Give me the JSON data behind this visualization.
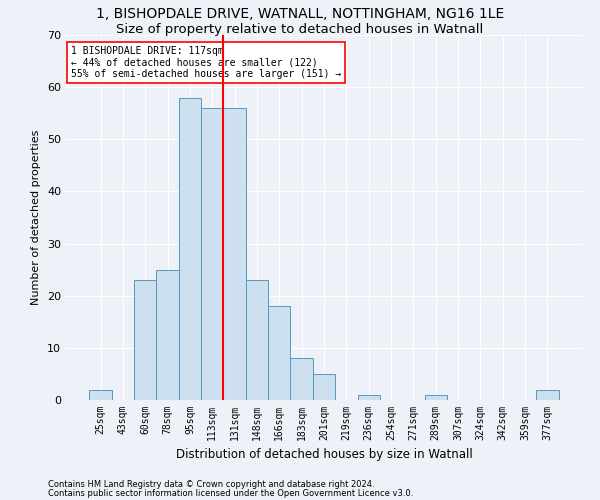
{
  "title1": "1, BISHOPDALE DRIVE, WATNALL, NOTTINGHAM, NG16 1LE",
  "title2": "Size of property relative to detached houses in Watnall",
  "xlabel": "Distribution of detached houses by size in Watnall",
  "ylabel": "Number of detached properties",
  "categories": [
    "25sqm",
    "43sqm",
    "60sqm",
    "78sqm",
    "95sqm",
    "113sqm",
    "131sqm",
    "148sqm",
    "166sqm",
    "183sqm",
    "201sqm",
    "219sqm",
    "236sqm",
    "254sqm",
    "271sqm",
    "289sqm",
    "307sqm",
    "324sqm",
    "342sqm",
    "359sqm",
    "377sqm"
  ],
  "values": [
    2,
    0,
    23,
    25,
    58,
    56,
    56,
    23,
    18,
    8,
    5,
    0,
    1,
    0,
    0,
    1,
    0,
    0,
    0,
    0,
    2
  ],
  "bar_color": "#cce0f0",
  "bar_edge_color": "#5599bb",
  "vline_x": 5.5,
  "annotation_text": "1 BISHOPDALE DRIVE: 117sqm\n← 44% of detached houses are smaller (122)\n55% of semi-detached houses are larger (151) →",
  "box_facecolor": "white",
  "box_edgecolor": "red",
  "vline_color": "red",
  "footnote1": "Contains HM Land Registry data © Crown copyright and database right 2024.",
  "footnote2": "Contains public sector information licensed under the Open Government Licence v3.0.",
  "bg_color": "#eef2f8",
  "plot_bg_color": "#eef2f8",
  "ylim": [
    0,
    70
  ],
  "yticks": [
    0,
    10,
    20,
    30,
    40,
    50,
    60,
    70
  ],
  "grid_color": "#ffffff",
  "title1_fontsize": 10,
  "title2_fontsize": 9.5,
  "xlabel_fontsize": 8.5,
  "ylabel_fontsize": 8,
  "tick_fontsize": 7,
  "annot_fontsize": 7,
  "footnote_fontsize": 6
}
